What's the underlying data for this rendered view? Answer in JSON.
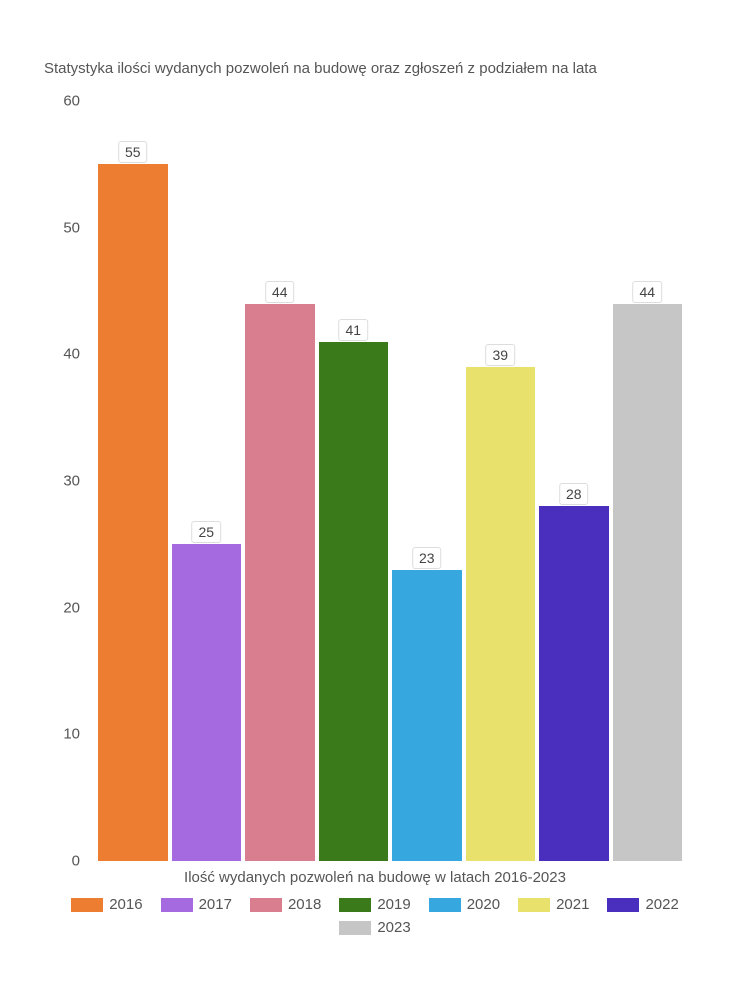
{
  "chart": {
    "type": "bar",
    "title": "Statystyka ilości wydanych pozwoleń na budowę oraz zgłoszeń z podziałem na lata",
    "x_title": "Ilość wydanych pozwoleń na budowę w latach 2016-2023",
    "ylim": [
      0,
      60
    ],
    "ytick_step": 10,
    "yticks": [
      0,
      10,
      20,
      30,
      40,
      50,
      60
    ],
    "background_color": "#ffffff",
    "text_color": "#555555",
    "title_fontsize": 15,
    "label_fontsize": 15,
    "tick_fontsize": 15,
    "bar_label_fontsize": 14,
    "bar_label_bg": "#ffffff",
    "bar_label_border": "#dddddd",
    "bar_width": 0.92,
    "series": [
      {
        "year": "2016",
        "value": 55,
        "color": "#ed7d31"
      },
      {
        "year": "2017",
        "value": 25,
        "color": "#a569e0"
      },
      {
        "year": "2018",
        "value": 44,
        "color": "#d97e8e"
      },
      {
        "year": "2019",
        "value": 41,
        "color": "#3b7a1a"
      },
      {
        "year": "2020",
        "value": 23,
        "color": "#37a7e0"
      },
      {
        "year": "2021",
        "value": 39,
        "color": "#e8e26c"
      },
      {
        "year": "2022",
        "value": 28,
        "color": "#4a2fbf"
      },
      {
        "year": "2023",
        "value": 44,
        "color": "#c6c6c6"
      }
    ]
  }
}
